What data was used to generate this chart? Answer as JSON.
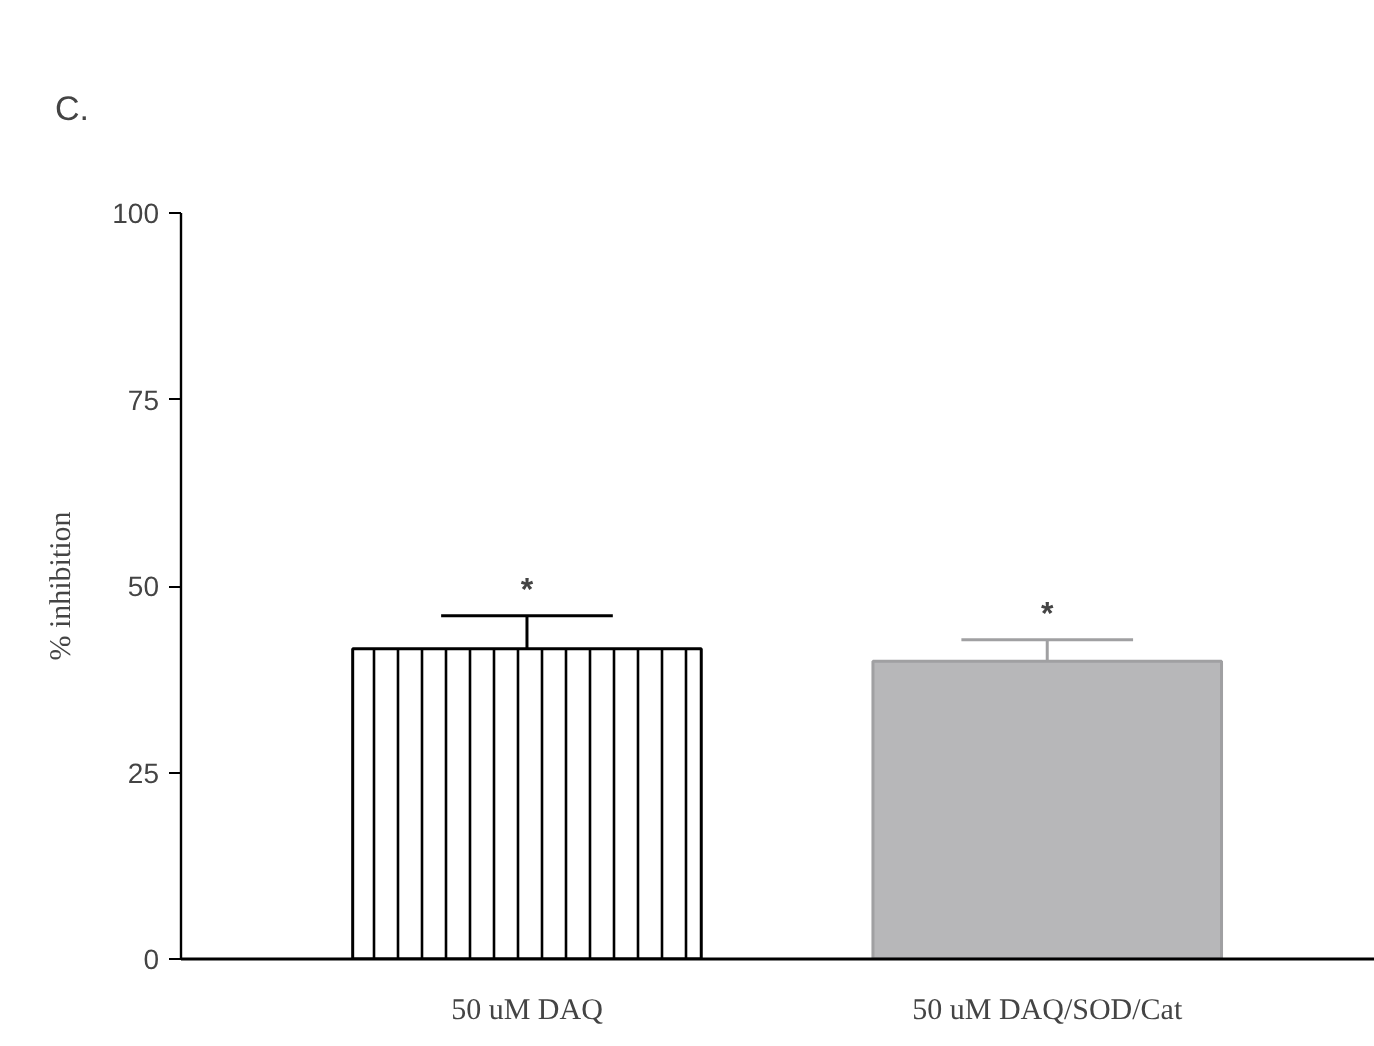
{
  "chart_data": {
    "type": "bar",
    "title": "C.",
    "ylabel": "% inhibition",
    "categories": [
      "50 uM DAQ",
      "50 uM DAQ/SOD/Cat"
    ],
    "values": [
      41.6,
      39.9
    ],
    "colors": [
      "#ffffff",
      "#b7b7b9"
    ],
    "errors": [
      [
        41.6,
        46.0
      ],
      [
        39.9,
        42.8
      ]
    ],
    "ylim": [
      0,
      100
    ],
    "yticks": [
      0,
      25,
      50,
      75,
      100
    ],
    "annotations": [
      "*",
      "*"
    ],
    "grid": false
  }
}
